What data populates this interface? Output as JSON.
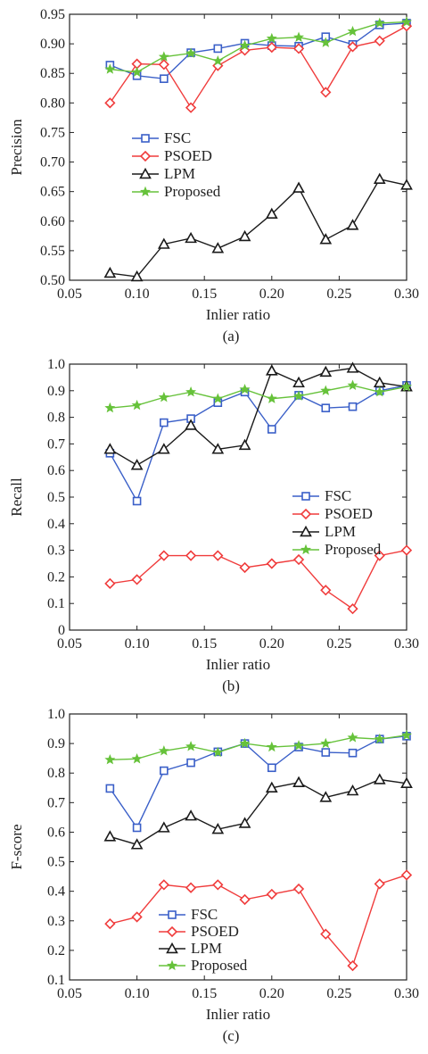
{
  "chart_data": [
    {
      "type": "line",
      "caption": "(a)",
      "xlabel": "Inlier ratio",
      "ylabel": "Precision",
      "xlim": [
        0.05,
        0.3
      ],
      "ylim": [
        0.5,
        0.95
      ],
      "xticks": [
        "0.05",
        "0.10",
        "0.15",
        "0.20",
        "0.25",
        "0.30"
      ],
      "yticks": [
        "0.50",
        "0.55",
        "0.60",
        "0.65",
        "0.70",
        "0.75",
        "0.80",
        "0.85",
        "0.90",
        "0.95"
      ],
      "legend_position": "center-left",
      "x": [
        0.08,
        0.1,
        0.12,
        0.14,
        0.16,
        0.18,
        0.2,
        0.22,
        0.24,
        0.26,
        0.28,
        0.3
      ],
      "series": [
        {
          "name": "FSC",
          "color": "#3a5fc8",
          "marker": "square",
          "values": [
            0.864,
            0.846,
            0.841,
            0.885,
            0.892,
            0.901,
            0.897,
            0.896,
            0.912,
            0.899,
            0.932,
            0.935
          ]
        },
        {
          "name": "PSOED",
          "color": "#f03c3c",
          "marker": "diamond",
          "values": [
            0.8,
            0.866,
            0.865,
            0.792,
            0.863,
            0.889,
            0.894,
            0.892,
            0.818,
            0.895,
            0.905,
            0.93
          ]
        },
        {
          "name": "LPM",
          "color": "#1a1a1a",
          "marker": "triangle",
          "values": [
            0.512,
            0.506,
            0.561,
            0.571,
            0.554,
            0.574,
            0.612,
            0.656,
            0.569,
            0.593,
            0.671,
            0.661
          ]
        },
        {
          "name": "Proposed",
          "color": "#66c23a",
          "marker": "star",
          "values": [
            0.857,
            0.852,
            0.878,
            0.884,
            0.871,
            0.897,
            0.909,
            0.911,
            0.902,
            0.921,
            0.935,
            0.937
          ]
        }
      ]
    },
    {
      "type": "line",
      "caption": "(b)",
      "xlabel": "Inlier ratio",
      "ylabel": "Recall",
      "xlim": [
        0.05,
        0.3
      ],
      "ylim": [
        0,
        1.0
      ],
      "xticks": [
        "0.05",
        "0.10",
        "0.15",
        "0.20",
        "0.25",
        "0.30"
      ],
      "yticks": [
        "0",
        "0.1",
        "0.2",
        "0.3",
        "0.4",
        "0.5",
        "0.6",
        "0.7",
        "0.8",
        "0.9",
        "1.0"
      ],
      "legend_position": "center-right",
      "x": [
        0.08,
        0.1,
        0.12,
        0.14,
        0.16,
        0.18,
        0.2,
        0.22,
        0.24,
        0.26,
        0.28,
        0.3
      ],
      "series": [
        {
          "name": "FSC",
          "color": "#3a5fc8",
          "marker": "square",
          "values": [
            0.665,
            0.485,
            0.78,
            0.795,
            0.855,
            0.895,
            0.755,
            0.883,
            0.835,
            0.84,
            0.9,
            0.92
          ]
        },
        {
          "name": "PSOED",
          "color": "#f03c3c",
          "marker": "diamond",
          "values": [
            0.175,
            0.19,
            0.28,
            0.28,
            0.28,
            0.235,
            0.25,
            0.265,
            0.15,
            0.08,
            0.28,
            0.3
          ]
        },
        {
          "name": "LPM",
          "color": "#1a1a1a",
          "marker": "triangle",
          "values": [
            0.68,
            0.62,
            0.68,
            0.77,
            0.68,
            0.695,
            0.975,
            0.93,
            0.97,
            0.985,
            0.93,
            0.915
          ]
        },
        {
          "name": "Proposed",
          "color": "#66c23a",
          "marker": "star",
          "values": [
            0.835,
            0.845,
            0.875,
            0.895,
            0.87,
            0.905,
            0.87,
            0.88,
            0.9,
            0.92,
            0.895,
            0.915
          ]
        }
      ]
    },
    {
      "type": "line",
      "caption": "(c)",
      "xlabel": "Inlier ratio",
      "ylabel": "F-score",
      "xlim": [
        0.05,
        0.3
      ],
      "ylim": [
        0.1,
        1.0
      ],
      "xticks": [
        "0.05",
        "0.10",
        "0.15",
        "0.20",
        "0.25",
        "0.30"
      ],
      "yticks": [
        "0.1",
        "0.2",
        "0.3",
        "0.4",
        "0.5",
        "0.6",
        "0.7",
        "0.8",
        "0.9",
        "1.0"
      ],
      "legend_position": "bottom-left",
      "x": [
        0.08,
        0.1,
        0.12,
        0.14,
        0.16,
        0.18,
        0.2,
        0.22,
        0.24,
        0.26,
        0.28,
        0.3
      ],
      "series": [
        {
          "name": "FSC",
          "color": "#3a5fc8",
          "marker": "square",
          "values": [
            0.748,
            0.615,
            0.808,
            0.835,
            0.872,
            0.9,
            0.818,
            0.888,
            0.87,
            0.868,
            0.915,
            0.925
          ]
        },
        {
          "name": "PSOED",
          "color": "#f03c3c",
          "marker": "diamond",
          "values": [
            0.29,
            0.313,
            0.422,
            0.412,
            0.422,
            0.372,
            0.39,
            0.408,
            0.255,
            0.148,
            0.425,
            0.455
          ]
        },
        {
          "name": "LPM",
          "color": "#1a1a1a",
          "marker": "triangle",
          "values": [
            0.585,
            0.558,
            0.615,
            0.655,
            0.61,
            0.63,
            0.75,
            0.768,
            0.718,
            0.74,
            0.778,
            0.765
          ]
        },
        {
          "name": "Proposed",
          "color": "#66c23a",
          "marker": "star",
          "values": [
            0.845,
            0.848,
            0.875,
            0.89,
            0.87,
            0.9,
            0.888,
            0.893,
            0.9,
            0.92,
            0.915,
            0.928
          ]
        }
      ]
    }
  ]
}
